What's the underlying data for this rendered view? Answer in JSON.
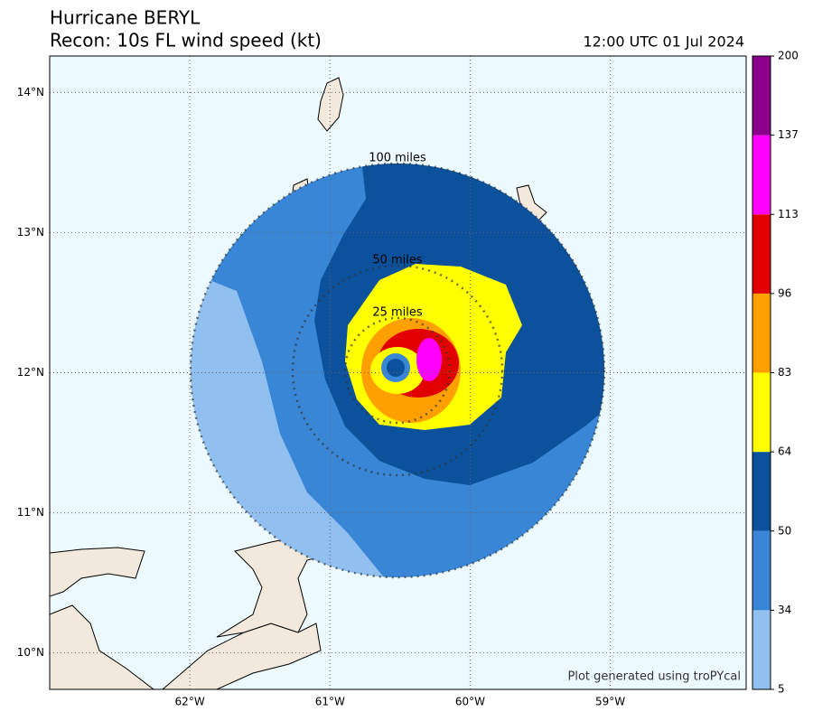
{
  "header": {
    "title": "Hurricane BERYL",
    "subtitle": "Recon: 10s FL wind speed (kt)",
    "date": "12:00 UTC 01 Jul 2024"
  },
  "map": {
    "xlim": [
      -63.0,
      -58.03
    ],
    "ylim": [
      9.74,
      14.26
    ],
    "xticks": [
      {
        "value": -62,
        "label": "62°W"
      },
      {
        "value": -61,
        "label": "61°W"
      },
      {
        "value": -60,
        "label": "60°W"
      },
      {
        "value": -59,
        "label": "59°W"
      }
    ],
    "yticks": [
      {
        "value": 10,
        "label": "10°N"
      },
      {
        "value": 11,
        "label": "11°N"
      },
      {
        "value": 12,
        "label": "12°N"
      },
      {
        "value": 13,
        "label": "13°N"
      },
      {
        "value": 14,
        "label": "14°N"
      }
    ],
    "grid": true,
    "rings": [
      "100 miles",
      "50 miles",
      "25 miles"
    ],
    "credit": "Plot generated using troPYcal"
  },
  "colorbar": {
    "levels": [
      5,
      34,
      50,
      64,
      83,
      96,
      113,
      137,
      200
    ],
    "colors": [
      "#90bff0",
      "#3a86d6",
      "#0b519c",
      "#ffff00",
      "#ff9f00",
      "#e00000",
      "#ff00ff",
      "#8b008b"
    ]
  }
}
